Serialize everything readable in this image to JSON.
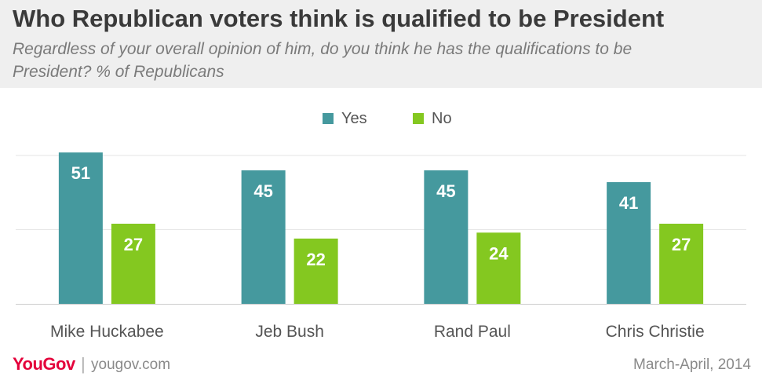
{
  "header": {
    "title": "Who Republican voters think is qualified to be President",
    "subtitle": "Regardless of your overall opinion of him, do you think he has the qualifications to be President? % of Republicans"
  },
  "footer": {
    "logo": "YouGov",
    "separator": "|",
    "url": "yougov.com",
    "date": "March-April, 2014"
  },
  "colors": {
    "yes": "#45999e",
    "no": "#84c820",
    "grid": "#e6e6e6",
    "axis": "#cccccc",
    "label": "#555555"
  },
  "chart_data": {
    "type": "bar",
    "title": "Who Republican voters think is qualified to be President",
    "subtitle": "Regardless of your overall opinion of him, do you think he has the qualifications to be President? % of Republicans",
    "categories": [
      "Mike Huckabee",
      "Jeb Bush",
      "Rand Paul",
      "Chris Christie"
    ],
    "series": [
      {
        "name": "Yes",
        "values": [
          51,
          45,
          45,
          41
        ]
      },
      {
        "name": "No",
        "values": [
          27,
          22,
          24,
          27
        ]
      }
    ],
    "ylim": [
      0,
      50
    ],
    "gridlines": [
      25,
      50
    ],
    "legend": "top-center",
    "data_labels": true
  }
}
